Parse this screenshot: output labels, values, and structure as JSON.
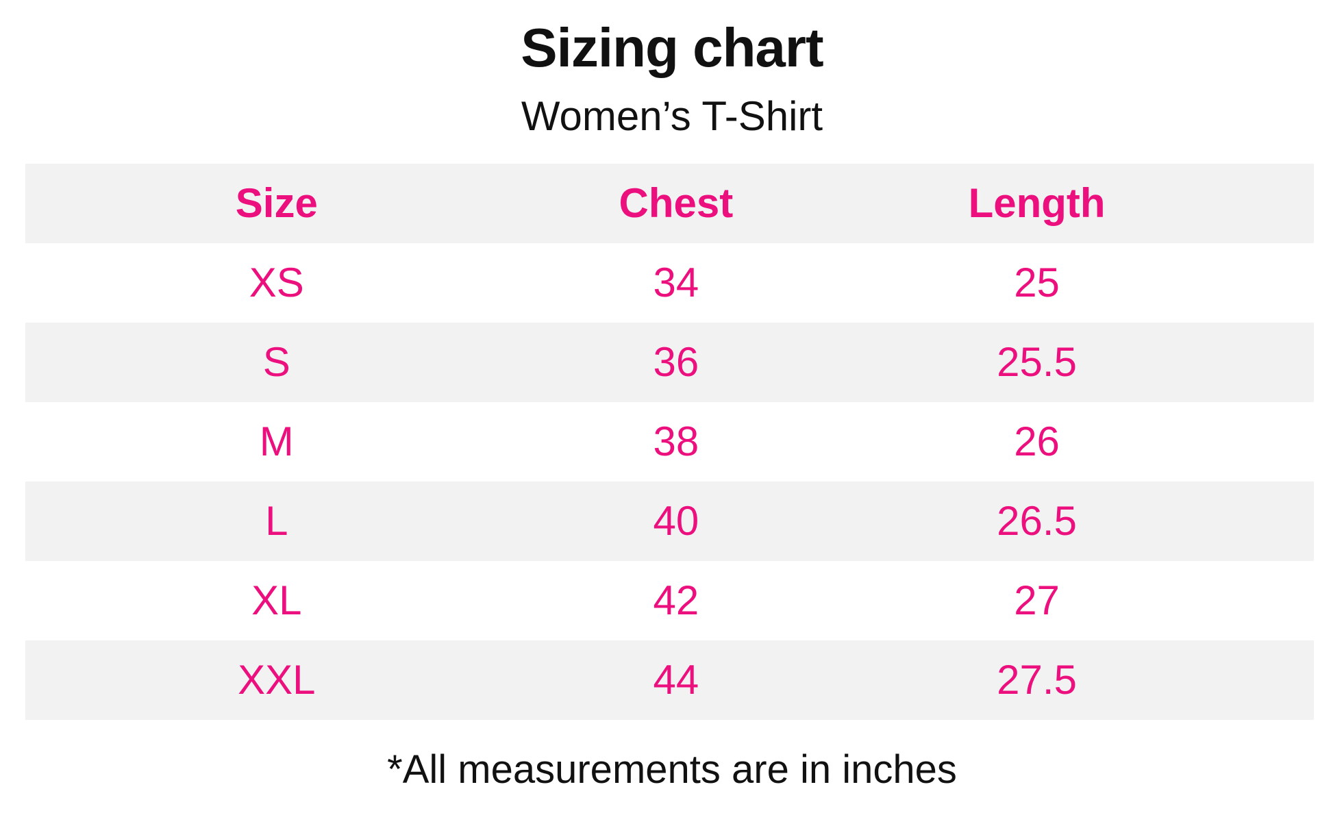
{
  "header": {
    "title": "Sizing chart",
    "subtitle": "Women’s T-Shirt"
  },
  "chart_data": {
    "type": "table",
    "title": "Sizing chart",
    "subtitle": "Women’s T-Shirt",
    "columns": [
      "Size",
      "Chest",
      "Length"
    ],
    "rows": [
      [
        "XS",
        "34",
        "25"
      ],
      [
        "S",
        "36",
        "25.5"
      ],
      [
        "M",
        "38",
        "26"
      ],
      [
        "L",
        "40",
        "26.5"
      ],
      [
        "XL",
        "42",
        "27"
      ],
      [
        "XXL",
        "44",
        "27.5"
      ]
    ],
    "layout": {
      "header_row_shaded": true,
      "alternating_row_shading": "header gray, then white/gray alternating",
      "units": "inches"
    }
  },
  "footnote": "*All measurements are in inches",
  "colors": {
    "accent_pink": "#EC0F7E",
    "row_gray": "#F2F2F3",
    "text_black": "#111111",
    "background": "#FFFFFF"
  }
}
